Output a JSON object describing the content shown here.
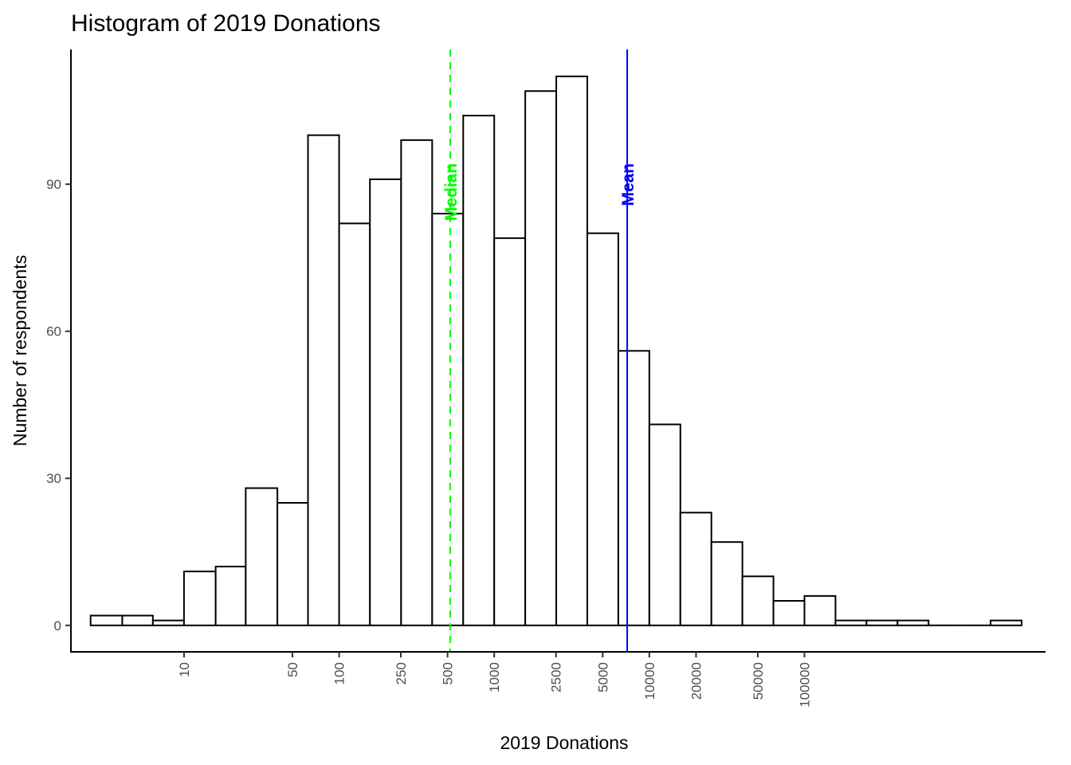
{
  "chart_data": {
    "type": "bar",
    "title": "Histogram of 2019 Donations",
    "xlabel": "2019 Donations",
    "ylabel": "Number of respondents",
    "x_scale": "log10",
    "bin_width_log10": 0.2,
    "bins": [
      {
        "x_start": 2.5,
        "x_end": 4.0,
        "count": 2
      },
      {
        "x_start": 4.0,
        "x_end": 6.3,
        "count": 2
      },
      {
        "x_start": 6.3,
        "x_end": 10,
        "count": 1
      },
      {
        "x_start": 10,
        "x_end": 16,
        "count": 11
      },
      {
        "x_start": 16,
        "x_end": 25,
        "count": 12
      },
      {
        "x_start": 25,
        "x_end": 40,
        "count": 28
      },
      {
        "x_start": 40,
        "x_end": 63,
        "count": 25
      },
      {
        "x_start": 63,
        "x_end": 100,
        "count": 100
      },
      {
        "x_start": 100,
        "x_end": 158,
        "count": 82
      },
      {
        "x_start": 158,
        "x_end": 251,
        "count": 91
      },
      {
        "x_start": 251,
        "x_end": 398,
        "count": 99
      },
      {
        "x_start": 398,
        "x_end": 631,
        "count": 84
      },
      {
        "x_start": 631,
        "x_end": 1000,
        "count": 104
      },
      {
        "x_start": 1000,
        "x_end": 1585,
        "count": 79
      },
      {
        "x_start": 1585,
        "x_end": 2512,
        "count": 109
      },
      {
        "x_start": 2512,
        "x_end": 3981,
        "count": 112
      },
      {
        "x_start": 3981,
        "x_end": 6310,
        "count": 80
      },
      {
        "x_start": 6310,
        "x_end": 10000,
        "count": 56
      },
      {
        "x_start": 10000,
        "x_end": 15849,
        "count": 41
      },
      {
        "x_start": 15849,
        "x_end": 25119,
        "count": 23
      },
      {
        "x_start": 25119,
        "x_end": 39811,
        "count": 17
      },
      {
        "x_start": 39811,
        "x_end": 63096,
        "count": 10
      },
      {
        "x_start": 63096,
        "x_end": 100000,
        "count": 5
      },
      {
        "x_start": 100000,
        "x_end": 158489,
        "count": 6
      },
      {
        "x_start": 158489,
        "x_end": 251189,
        "count": 1
      },
      {
        "x_start": 251189,
        "x_end": 398107,
        "count": 1
      },
      {
        "x_start": 398107,
        "x_end": 630957,
        "count": 1
      },
      {
        "x_start": 630957,
        "x_end": 1000000,
        "count": 0
      },
      {
        "x_start": 1000000,
        "x_end": 1584893,
        "count": 0
      },
      {
        "x_start": 1584893,
        "x_end": 2511886,
        "count": 1
      }
    ],
    "x_ticks": [
      {
        "value": 10,
        "label": "10"
      },
      {
        "value": 50,
        "label": "50"
      },
      {
        "value": 100,
        "label": "100"
      },
      {
        "value": 250,
        "label": "250"
      },
      {
        "value": 500,
        "label": "500"
      },
      {
        "value": 1000,
        "label": "1000"
      },
      {
        "value": 2500,
        "label": "2500"
      },
      {
        "value": 5000,
        "label": "5000"
      },
      {
        "value": 10000,
        "label": "10000"
      },
      {
        "value": 20000,
        "label": "20000"
      },
      {
        "value": 50000,
        "label": "50000"
      },
      {
        "value": 100000,
        "label": "100000"
      }
    ],
    "y_ticks": [
      0,
      30,
      60,
      90
    ],
    "ylim": [
      -5.4,
      117.5
    ],
    "xlim_log10": [
      0.271,
      6.554
    ],
    "reference_lines": [
      {
        "name": "Median",
        "label": "Median",
        "value": 520,
        "color": "#00ff00",
        "style": "dashed"
      },
      {
        "name": "Mean",
        "label": "Mean",
        "value": 7200,
        "color": "#0000ff",
        "style": "solid"
      }
    ],
    "grid": false,
    "legend": "none",
    "colors": {
      "bar_fill": "#ffffff",
      "bar_stroke": "#000000",
      "axis": "#000000"
    }
  }
}
